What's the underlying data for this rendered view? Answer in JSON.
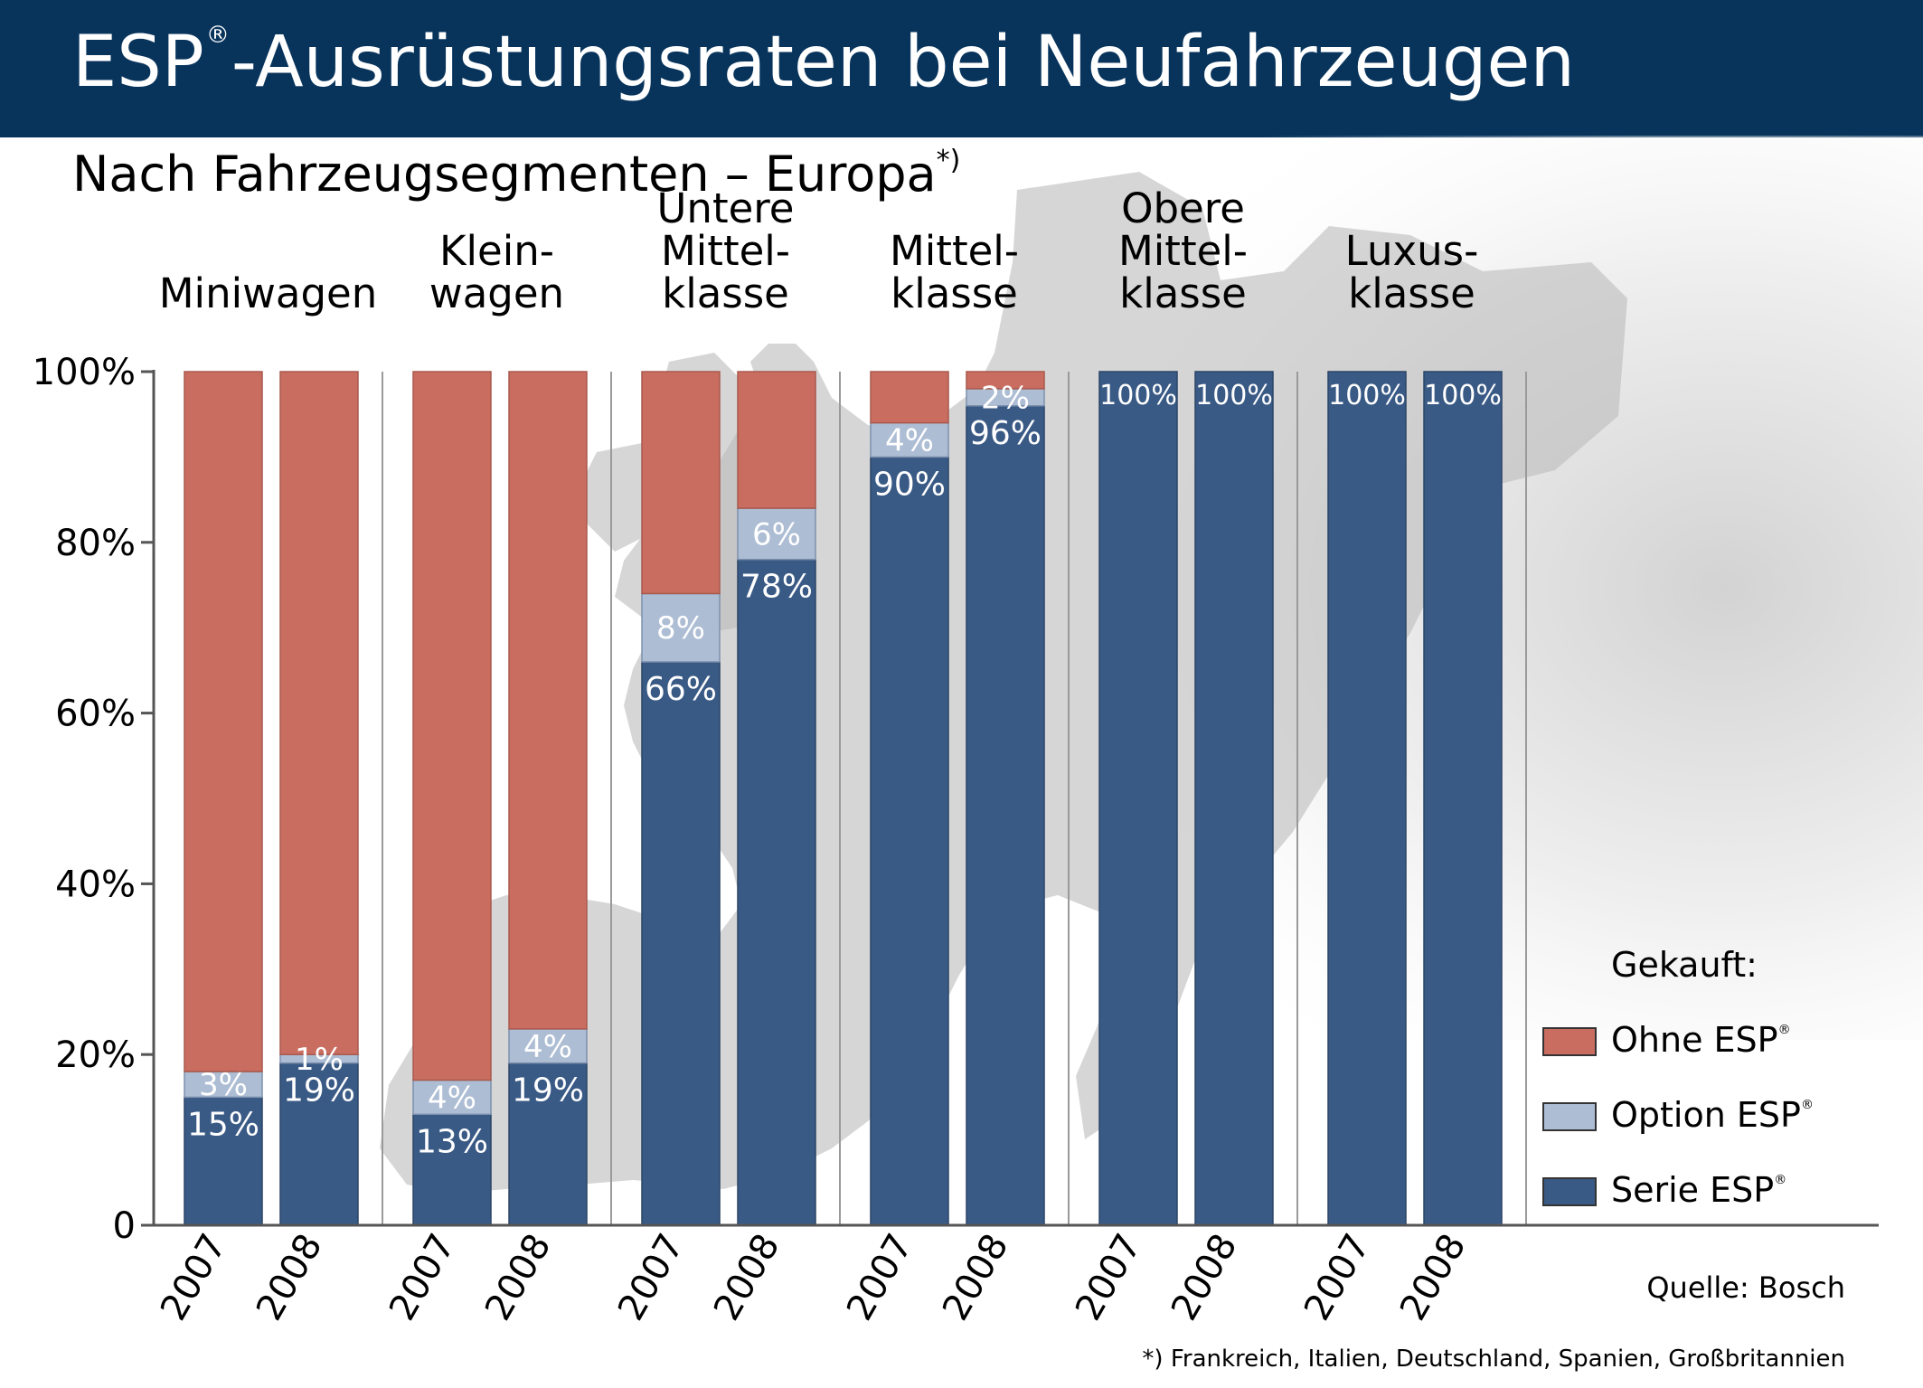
{
  "title": {
    "main": "ESP",
    "reg": "®",
    "rest": "-Ausrüstungsraten bei Neufahrzeugen"
  },
  "subtitle": {
    "text": "Nach Fahrzeugsegmenten – Europa",
    "mark": "*)"
  },
  "colors": {
    "ohne": "#c96d60",
    "option": "#adbdd4",
    "serie": "#3a5a86",
    "header": "#08345c"
  },
  "legend": {
    "title": "Gekauft:",
    "items": [
      {
        "label": "Ohne ESP",
        "mark": "®",
        "color": "#c96d60"
      },
      {
        "label": "Option ESP",
        "mark": "®",
        "color": "#adbdd4"
      },
      {
        "label": "Serie ESP",
        "mark": "®",
        "color": "#3a5a86"
      }
    ]
  },
  "source": "Quelle: Bosch",
  "footnote": "*) Frankreich, Italien, Deutschland, Spanien, Großbritannien",
  "chart_data": {
    "type": "bar",
    "stacked": true,
    "y_ticks": [
      "0",
      "20%",
      "40%",
      "60%",
      "80%",
      "100%"
    ],
    "ylim": [
      0,
      100
    ],
    "groups": [
      {
        "label_lines": [
          "Miniwagen"
        ]
      },
      {
        "label_lines": [
          "Klein-",
          "wagen"
        ]
      },
      {
        "label_lines": [
          "Untere",
          "Mittel-",
          "klasse"
        ]
      },
      {
        "label_lines": [
          "Mittel-",
          "klasse"
        ]
      },
      {
        "label_lines": [
          "Obere",
          "Mittel-",
          "klasse"
        ]
      },
      {
        "label_lines": [
          "Luxus-",
          "klasse"
        ]
      }
    ],
    "years": [
      "2007",
      "2008"
    ],
    "series": [
      {
        "name": "Serie ESP",
        "values": [
          [
            15,
            19
          ],
          [
            13,
            19
          ],
          [
            66,
            78
          ],
          [
            90,
            96
          ],
          [
            100,
            100
          ],
          [
            100,
            100
          ]
        ]
      },
      {
        "name": "Option ESP",
        "values": [
          [
            3,
            1
          ],
          [
            4,
            4
          ],
          [
            8,
            6
          ],
          [
            4,
            2
          ],
          [
            0,
            0
          ],
          [
            0,
            0
          ]
        ]
      },
      {
        "name": "Ohne ESP",
        "values": [
          [
            82,
            80
          ],
          [
            83,
            77
          ],
          [
            26,
            16
          ],
          [
            6,
            2
          ],
          [
            0,
            0
          ],
          [
            0,
            0
          ]
        ]
      }
    ],
    "data_labels": {
      "serie": [
        [
          "15%",
          "19%"
        ],
        [
          "13%",
          "19%"
        ],
        [
          "66%",
          "78%"
        ],
        [
          "90%",
          "96%"
        ],
        [
          "100%",
          "100%"
        ],
        [
          "100%",
          "100%"
        ]
      ],
      "option": [
        [
          "3%",
          "1%"
        ],
        [
          "4%",
          "4%"
        ],
        [
          "8%",
          "6%"
        ],
        [
          "4%",
          "2%"
        ],
        [
          "",
          ""
        ],
        [
          "",
          ""
        ]
      ]
    }
  }
}
